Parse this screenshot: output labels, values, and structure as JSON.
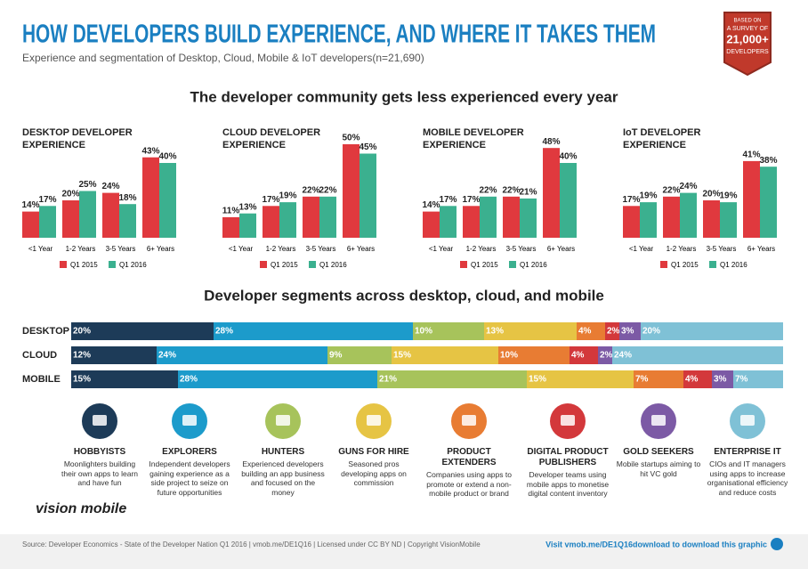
{
  "header": {
    "title": "HOW DEVELOPERS BUILD EXPERIENCE, AND WHERE IT TAKES THEM",
    "subtitle": "Experience and segmentation of Desktop, Cloud, Mobile & IoT  developers(n=21,690)",
    "badge": [
      "BASED ON",
      "A SURVEY OF",
      "21,000+",
      "DEVELOPERS"
    ]
  },
  "section_titles": [
    "The developer community gets less experienced every year",
    "Developer segments across desktop, cloud, and mobile"
  ],
  "chart_data": [
    {
      "type": "bar",
      "title": "DESKTOP DEVELOPER EXPERIENCE",
      "categories": [
        "<1 Year",
        "1-2 Years",
        "3-5 Years",
        "6+ Years"
      ],
      "ylim": [
        0,
        50
      ],
      "series": [
        {
          "name": "Q1 2015",
          "color": "#e0393e",
          "values": [
            14,
            20,
            24,
            43
          ],
          "value_labels": [
            "14%",
            "20%",
            "24%",
            "43%"
          ]
        },
        {
          "name": "Q1 2016",
          "color": "#3bb08f",
          "values": [
            17,
            25,
            18,
            40
          ],
          "value_labels": [
            "17%",
            "25%",
            "18%",
            "40%"
          ]
        }
      ]
    },
    {
      "type": "bar",
      "title": "CLOUD DEVELOPER EXPERIENCE",
      "categories": [
        "<1 Year",
        "1-2 Years",
        "3-5 Years",
        "6+ Years"
      ],
      "ylim": [
        0,
        50
      ],
      "series": [
        {
          "name": "Q1 2015",
          "color": "#e0393e",
          "values": [
            11,
            17,
            22,
            50
          ],
          "value_labels": [
            "11%",
            "17%",
            "22%",
            "50%"
          ]
        },
        {
          "name": "Q1 2016",
          "color": "#3bb08f",
          "values": [
            13,
            19,
            22,
            45
          ],
          "value_labels": [
            "13%",
            "19%",
            "22%",
            "45%"
          ]
        }
      ]
    },
    {
      "type": "bar",
      "title": "MOBILE DEVELOPER EXPERIENCE",
      "categories": [
        "<1 Year",
        "1-2 Years",
        "3-5 Years",
        "6+ Years"
      ],
      "ylim": [
        0,
        50
      ],
      "series": [
        {
          "name": "Q1 2015",
          "color": "#e0393e",
          "values": [
            14,
            17,
            22,
            48
          ],
          "value_labels": [
            "14%",
            "17%",
            "22%",
            "48%"
          ]
        },
        {
          "name": "Q1 2016",
          "color": "#3bb08f",
          "values": [
            17,
            22,
            21,
            40
          ],
          "value_labels": [
            "17%",
            "22%",
            "21%",
            "40%"
          ]
        }
      ]
    },
    {
      "type": "bar",
      "title": "IoT DEVELOPER EXPERIENCE",
      "categories": [
        "<1 Year",
        "1-2 Years",
        "3-5 Years",
        "6+ Years"
      ],
      "ylim": [
        0,
        50
      ],
      "series": [
        {
          "name": "Q1 2015",
          "color": "#e0393e",
          "values": [
            17,
            22,
            20,
            41
          ],
          "value_labels": [
            "17%",
            "22%",
            "20%",
            "41%"
          ]
        },
        {
          "name": "Q1 2016",
          "color": "#3bb08f",
          "values": [
            19,
            24,
            19,
            38
          ],
          "value_labels": [
            "19%",
            "24%",
            "19%",
            "38%"
          ]
        }
      ]
    },
    {
      "type": "stackedbar",
      "categories": [
        "DESKTOP",
        "CLOUD",
        "MOBILE"
      ],
      "xlim": [
        0,
        100
      ],
      "series": [
        {
          "name": "HOBBYISTS",
          "color": "#1d3b58",
          "values": [
            20,
            12,
            15
          ],
          "value_labels": [
            "20%",
            "12%",
            "15%"
          ]
        },
        {
          "name": "EXPLORERS",
          "color": "#1c9bcb",
          "values": [
            28,
            24,
            28
          ],
          "value_labels": [
            "28%",
            "24%",
            "28%"
          ]
        },
        {
          "name": "HUNTERS",
          "color": "#a7c35b",
          "values": [
            10,
            9,
            21
          ],
          "value_labels": [
            "10%",
            "9%",
            "21%"
          ]
        },
        {
          "name": "GUNS FOR HIRE",
          "color": "#e6c444",
          "values": [
            13,
            15,
            15
          ],
          "value_labels": [
            "13%",
            "15%",
            "15%"
          ]
        },
        {
          "name": "PRODUCT EXTENDERS",
          "color": "#e87c33",
          "values": [
            4,
            10,
            7
          ],
          "value_labels": [
            "4%",
            "10%",
            "7%"
          ]
        },
        {
          "name": "DIGITAL PRODUCT PUBLISHERS",
          "color": "#d3383b",
          "values": [
            2,
            4,
            4
          ],
          "value_labels": [
            "2%",
            "4%",
            "4%"
          ]
        },
        {
          "name": "GOLD SEEKERS",
          "color": "#7c5aa5",
          "values": [
            3,
            2,
            3
          ],
          "value_labels": [
            "3%",
            "2%",
            "3%"
          ]
        },
        {
          "name": "ENTERPRISE IT",
          "color": "#7fc1d6",
          "values": [
            20,
            24,
            7
          ],
          "value_labels": [
            "20%",
            "24%",
            "7%"
          ]
        }
      ]
    }
  ],
  "segment_descriptions": [
    "Moonlighters building their own apps to learn and have fun",
    "Independent developers gaining experience as a side project to seize on future opportunities",
    "Experienced developers building an app business and focused on the money",
    "Seasoned pros developing apps on commission",
    "Companies using apps to promote or extend a non-mobile product or brand",
    "Developer teams using mobile apps to monetise digital content inventory",
    "Mobile startups aiming to hit VC gold",
    "CIOs and IT managers using apps to increase organisational efficiency and reduce costs"
  ],
  "logo": "vision mobile",
  "footer": {
    "source": "Source: Developer Economics - State of the Developer Nation Q1 2016 | vmob.me/DE1Q16 | Licensed under CC BY ND | Copyright VisionMobile",
    "download": "Visit vmob.me/DE1Q16download to download this graphic"
  }
}
